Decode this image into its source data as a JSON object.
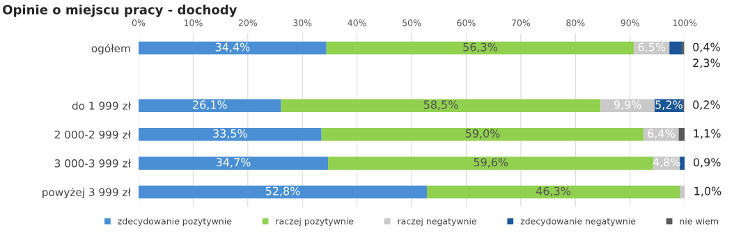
{
  "chart_data": {
    "type": "bar",
    "orientation": "horizontal",
    "stacked": true,
    "title": "Opinie o miejscu pracy - dochody",
    "categories": [
      "ogółem",
      null,
      "do 1 999 zł",
      "2 000-2 999 zł",
      "3 000-3 999 zł",
      "powyżej 3 999 zł"
    ],
    "series": [
      {
        "name": "zdecydowanie pozytywnie",
        "color": "#4a8fd4",
        "values": [
          34.4,
          null,
          26.1,
          33.5,
          34.7,
          52.8
        ],
        "value_labels": [
          "34,4%",
          null,
          "26,1%",
          "33,5%",
          "34,7%",
          "52,8%"
        ]
      },
      {
        "name": "raczej pozytywnie",
        "color": "#92d050",
        "values": [
          56.3,
          null,
          58.5,
          59.0,
          59.6,
          46.3
        ],
        "value_labels": [
          "56,3%",
          null,
          "58,5%",
          "59,0%",
          "59,6%",
          "46,3%"
        ]
      },
      {
        "name": "raczej negatywnie",
        "color": "#c9c9c9",
        "values": [
          6.5,
          null,
          9.9,
          6.4,
          4.8,
          1.0
        ],
        "value_labels": [
          "6,5%",
          null,
          "9,9%",
          "6,4%",
          "4,8%",
          "1,0%"
        ]
      },
      {
        "name": "zdecydowanie negatywnie",
        "color": "#1b5796",
        "values": [
          2.3,
          null,
          5.2,
          null,
          0.9,
          null
        ],
        "value_labels": [
          "2,3%",
          null,
          "5,2%",
          null,
          "0,9%",
          null
        ]
      },
      {
        "name": "nie wiem",
        "color": "#595959",
        "values": [
          0.4,
          null,
          0.2,
          1.1,
          null,
          null
        ],
        "value_labels": [
          "0,4%",
          null,
          "0,2%",
          "1,1%",
          null,
          null
        ]
      }
    ],
    "xlim": [
      0,
      100
    ],
    "xticks": [
      {
        "value": 0,
        "label": "0%"
      },
      {
        "value": 10,
        "label": "10%"
      },
      {
        "value": 20,
        "label": "20%"
      },
      {
        "value": 30,
        "label": "30%"
      },
      {
        "value": 40,
        "label": "40%"
      },
      {
        "value": 50,
        "label": "50%"
      },
      {
        "value": 60,
        "label": "60%"
      },
      {
        "value": 70,
        "label": "70%"
      },
      {
        "value": 80,
        "label": "80%"
      },
      {
        "value": 90,
        "label": "90%"
      },
      {
        "value": 100,
        "label": "100%"
      }
    ],
    "grid": "x",
    "legend": "bottom"
  }
}
